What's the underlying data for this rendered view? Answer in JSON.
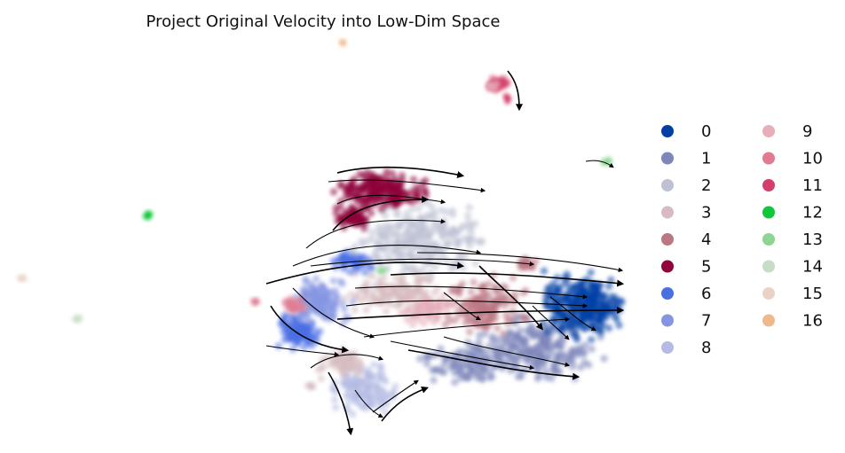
{
  "chart_data": {
    "type": "scatter",
    "title": "Project Original Velocity into Low-Dim Space",
    "xlabel": "",
    "ylabel": "",
    "axes_visible": false,
    "grid": false,
    "legend_placement": "right",
    "legend_columns": 2,
    "overlay": "velocity-streamlines",
    "series": [
      {
        "name": "0",
        "color": "#023fa5"
      },
      {
        "name": "1",
        "color": "#7d87b9"
      },
      {
        "name": "2",
        "color": "#bec1d4"
      },
      {
        "name": "3",
        "color": "#d6bcc0"
      },
      {
        "name": "4",
        "color": "#bb7784"
      },
      {
        "name": "5",
        "color": "#8e063b"
      },
      {
        "name": "6",
        "color": "#4a6fe3"
      },
      {
        "name": "7",
        "color": "#8595e1"
      },
      {
        "name": "8",
        "color": "#b5bbe3"
      },
      {
        "name": "9",
        "color": "#e6afb9"
      },
      {
        "name": "10",
        "color": "#e07b91"
      },
      {
        "name": "11",
        "color": "#d33f6a"
      },
      {
        "name": "12",
        "color": "#11c638"
      },
      {
        "name": "13",
        "color": "#8dd593"
      },
      {
        "name": "14",
        "color": "#c6dec7"
      },
      {
        "name": "15",
        "color": "#ead3c6"
      },
      {
        "name": "16",
        "color": "#f0b98d"
      }
    ]
  }
}
